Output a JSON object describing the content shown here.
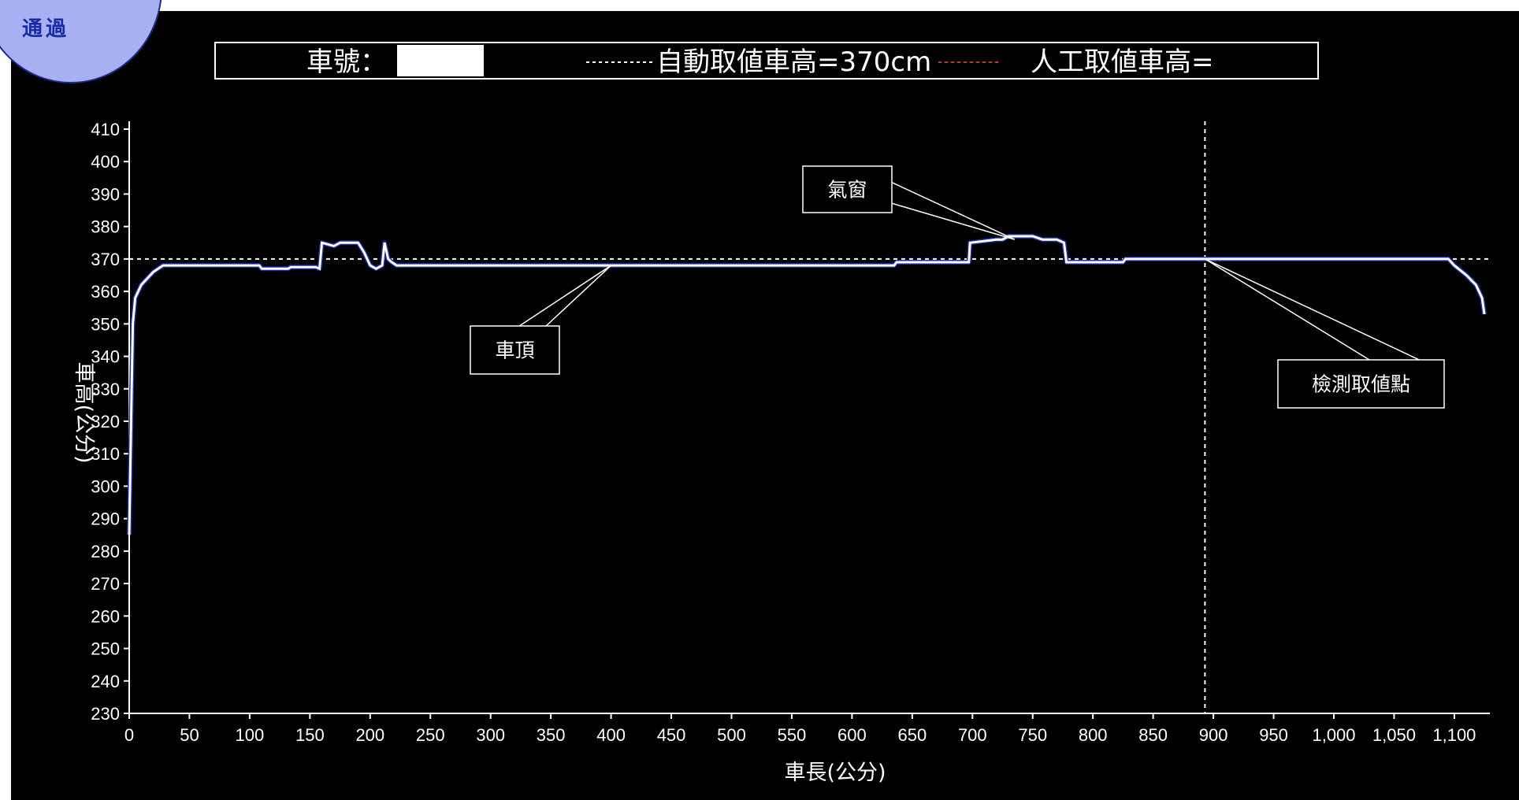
{
  "status_badge": "通過",
  "legend": {
    "plate_label": "車號：",
    "plate_value": "",
    "auto_label": "自動取値車高=370cm",
    "manual_label": "人工取値車高="
  },
  "colors": {
    "background": "#000000",
    "profile_line": "#ffffff",
    "profile_edge": "#1c2aa6",
    "auto_line": "#ffffff",
    "manual_line": "#c0392b",
    "badge_fill": "#a6b0f2"
  },
  "annotations": [
    {
      "label": "車頂",
      "x": 400,
      "y": 368
    },
    {
      "label": "氣窗",
      "x": 735,
      "y": 376
    },
    {
      "label": "檢測取値點",
      "x": 893,
      "y": 370
    }
  ],
  "chart_data": {
    "type": "line",
    "xlabel": "車長(公分)",
    "ylabel": "車高(公分)",
    "xlim": [
      0,
      1130
    ],
    "ylim": [
      230,
      410
    ],
    "xticks": [
      0,
      50,
      100,
      150,
      200,
      250,
      300,
      350,
      400,
      450,
      500,
      550,
      600,
      650,
      700,
      750,
      800,
      850,
      900,
      950,
      1000,
      1050,
      1100
    ],
    "xtick_labels": [
      "0",
      "50",
      "100",
      "150",
      "200",
      "250",
      "300",
      "350",
      "400",
      "450",
      "500",
      "550",
      "600",
      "650",
      "700",
      "750",
      "800",
      "850",
      "900",
      "950",
      "1,000",
      "1,050",
      "1,100"
    ],
    "yticks": [
      230,
      240,
      250,
      260,
      270,
      280,
      290,
      300,
      310,
      320,
      330,
      340,
      350,
      360,
      370,
      380,
      390,
      400,
      410
    ],
    "auto_height": 370,
    "measure_x": 893,
    "series": [
      {
        "role": "profile",
        "points": [
          [
            0,
            285
          ],
          [
            2,
            330
          ],
          [
            3,
            350
          ],
          [
            5,
            358
          ],
          [
            10,
            362
          ],
          [
            20,
            366
          ],
          [
            28,
            368
          ],
          [
            108,
            368
          ],
          [
            110,
            367
          ],
          [
            132,
            367
          ],
          [
            134,
            367.5
          ],
          [
            155,
            367.5
          ],
          [
            158,
            367
          ],
          [
            160,
            375
          ],
          [
            170,
            374
          ],
          [
            175,
            375
          ],
          [
            190,
            375
          ],
          [
            195,
            372
          ],
          [
            200,
            368
          ],
          [
            205,
            367
          ],
          [
            210,
            368
          ],
          [
            212,
            375
          ],
          [
            215,
            370
          ],
          [
            218,
            369
          ],
          [
            222,
            368
          ],
          [
            236,
            368
          ],
          [
            635,
            368
          ],
          [
            637,
            369
          ],
          [
            697,
            369
          ],
          [
            698,
            375
          ],
          [
            720,
            376
          ],
          [
            725,
            376
          ],
          [
            730,
            377
          ],
          [
            750,
            377
          ],
          [
            758,
            376
          ],
          [
            770,
            376
          ],
          [
            776,
            375
          ],
          [
            778,
            369
          ],
          [
            825,
            369
          ],
          [
            827,
            370
          ],
          [
            1095,
            370
          ],
          [
            1100,
            368
          ],
          [
            1110,
            365
          ],
          [
            1118,
            362
          ],
          [
            1123,
            358
          ],
          [
            1125,
            353
          ]
        ]
      }
    ]
  }
}
